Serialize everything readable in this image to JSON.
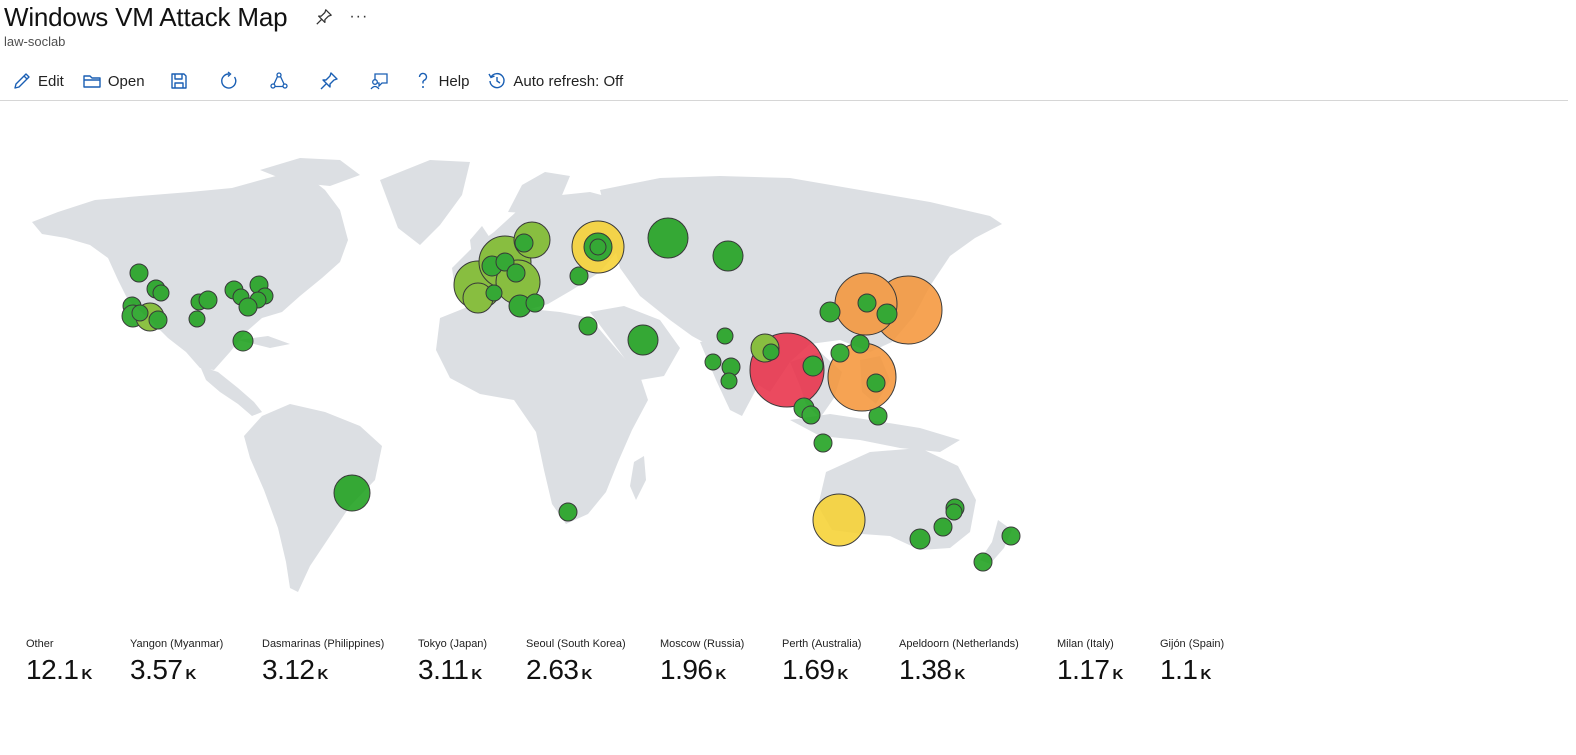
{
  "header": {
    "title": "Windows VM Attack Map",
    "subtitle": "law-soclab",
    "pin_icon": "pin-icon",
    "more_label": "···"
  },
  "toolbar": {
    "edit_label": "Edit",
    "open_label": "Open",
    "help_label": "Help",
    "auto_refresh_label": "Auto refresh: Off",
    "icons": [
      "edit-icon",
      "open-folder-icon",
      "save-icon",
      "refresh-icon",
      "share-icon",
      "pin-icon",
      "feedback-icon",
      "help-icon",
      "history-icon"
    ]
  },
  "colors": {
    "land": "#dcdfe3",
    "green": "#1ea11e",
    "yellow_green": "#7dba2a",
    "yellow": "#f7d234",
    "orange": "#f5973c",
    "red": "#e9324a"
  },
  "tiles": [
    {
      "label": "Other",
      "value": "12.1",
      "unit": "K"
    },
    {
      "label": "Yangon (Myanmar)",
      "value": "3.57",
      "unit": "K"
    },
    {
      "label": "Dasmarinas (Philippines)",
      "value": "3.12",
      "unit": "K"
    },
    {
      "label": "Tokyo (Japan)",
      "value": "3.11",
      "unit": "K"
    },
    {
      "label": "Seoul (South Korea)",
      "value": "2.63",
      "unit": "K"
    },
    {
      "label": "Moscow (Russia)",
      "value": "1.96",
      "unit": "K"
    },
    {
      "label": "Perth (Australia)",
      "value": "1.69",
      "unit": "K"
    },
    {
      "label": "Apeldoorn (Netherlands)",
      "value": "1.38",
      "unit": "K"
    },
    {
      "label": "Milan (Italy)",
      "value": "1.17",
      "unit": "K"
    },
    {
      "label": "Gijón (Spain)",
      "value": "1.1",
      "unit": "K"
    }
  ]
}
